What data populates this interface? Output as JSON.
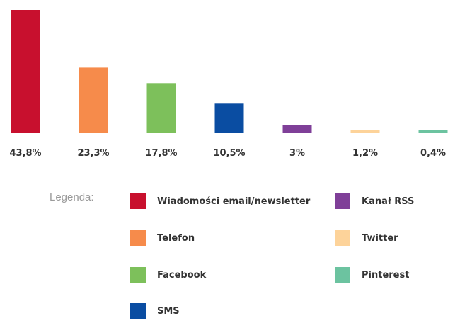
{
  "chart_data": {
    "type": "bar",
    "title": "",
    "xlabel": "",
    "ylabel": "",
    "ylim": [
      0,
      43.8
    ],
    "grid": false,
    "legend_position": "bottom",
    "bars": [
      {
        "name": "Wiadomości email/newsletter",
        "value": 43.8,
        "label": "43,8%",
        "color": "#c8102e"
      },
      {
        "name": "Telefon",
        "value": 23.3,
        "label": "23,3%",
        "color": "#f68b4b"
      },
      {
        "name": "Facebook",
        "value": 17.8,
        "label": "17,8%",
        "color": "#7dc05b"
      },
      {
        "name": "SMS",
        "value": 10.5,
        "label": "10,5%",
        "color": "#0a4da2"
      },
      {
        "name": "Kanał RSS",
        "value": 3,
        "label": "3%",
        "color": "#7f3f98"
      },
      {
        "name": "Twitter",
        "value": 1.2,
        "label": "1,2%",
        "color": "#fdd39a"
      },
      {
        "name": "Pinterest",
        "value": 0.4,
        "label": "0,4%",
        "color": "#6cc3a0"
      }
    ]
  },
  "legend": {
    "title": "Legenda:"
  }
}
